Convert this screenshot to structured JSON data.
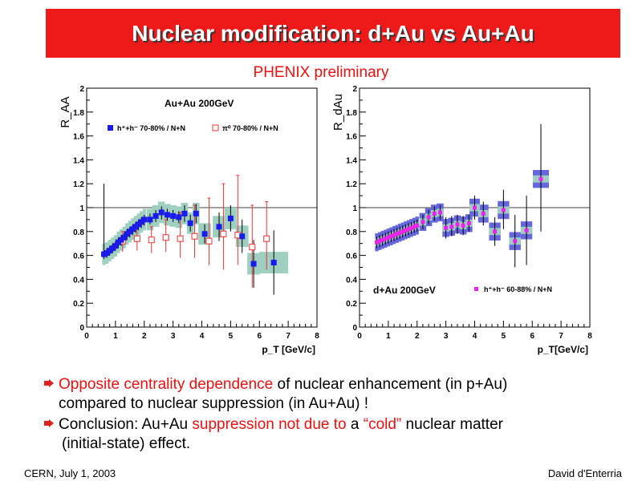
{
  "slide": {
    "title": "Nuclear modification: d+Au vs Au+Au",
    "subtitle": "PHENIX preliminary",
    "footer_left": "CERN, July 1, 2003",
    "footer_right": "David d'Enterria",
    "bullets": [
      {
        "highlight1": "Opposite centrality dependence",
        "text1": " of nuclear enhancement (in p+Au)",
        "line2": "compared to nuclear suppression (in Au+Au) !"
      },
      {
        "text1": "Conclusion: Au+Au ",
        "highlight1": "suppression not due to",
        "text2": " a ",
        "highlight2": "“cold”",
        "text3": " nuclear matter",
        "line2": "(initial-state) effect."
      }
    ]
  },
  "colors": {
    "title_bg": "#ee1a1a",
    "highlight": "#ee1111",
    "band_green": "#9ecfc0",
    "band_blue": "#6666dd",
    "magenta": "#ee22ee"
  },
  "chart_data": [
    {
      "type": "scatter",
      "title": "Au+Au 200GeV",
      "ylabel": "R_AA",
      "xlabel": "p_T [GeV/c]",
      "xlim": [
        0,
        8
      ],
      "ylim": [
        0,
        2
      ],
      "xticks": [
        "0",
        "1",
        "2",
        "3",
        "4",
        "5",
        "6",
        "7",
        "8"
      ],
      "yticks": [
        "0",
        "0.2",
        "0.4",
        "0.6",
        "0.8",
        "1",
        "1.2",
        "1.4",
        "1.6",
        "1.8",
        "2"
      ],
      "legend": [
        "h⁺+h⁻ 70-80% / N+N",
        "π⁰ 70-80% / N+N"
      ],
      "series": [
        {
          "name": "h⁺+h⁻ 70-80% / N+N",
          "x": [
            0.6,
            0.7,
            0.8,
            0.9,
            1.0,
            1.1,
            1.2,
            1.3,
            1.4,
            1.5,
            1.6,
            1.7,
            1.8,
            1.9,
            2.0,
            2.2,
            2.4,
            2.6,
            2.8,
            3.0,
            3.2,
            3.4,
            3.6,
            3.8,
            4.1,
            4.6,
            5.0,
            5.4,
            5.8,
            6.5
          ],
          "y": [
            0.61,
            0.62,
            0.64,
            0.66,
            0.68,
            0.71,
            0.73,
            0.75,
            0.78,
            0.8,
            0.82,
            0.84,
            0.86,
            0.88,
            0.9,
            0.9,
            0.93,
            0.96,
            0.94,
            0.93,
            0.92,
            0.95,
            0.87,
            0.95,
            0.78,
            0.84,
            0.91,
            0.76,
            0.53,
            0.54
          ]
        },
        {
          "name": "π⁰ 70-80% / N+N",
          "x": [
            1.25,
            1.75,
            2.25,
            2.75,
            3.25,
            3.75,
            4.25,
            4.75,
            5.25,
            5.75,
            6.25
          ],
          "y": [
            0.72,
            0.74,
            0.73,
            0.75,
            0.74,
            0.76,
            0.72,
            0.78,
            0.77,
            0.67,
            0.74
          ]
        }
      ]
    },
    {
      "type": "scatter",
      "title": "d+Au 200GeV",
      "ylabel": "R_dAu",
      "xlabel": "p_T[GeV/c]",
      "xlim": [
        0,
        8
      ],
      "ylim": [
        0,
        2
      ],
      "xticks": [
        "0",
        "1",
        "2",
        "3",
        "4",
        "5",
        "6",
        "7",
        "8"
      ],
      "yticks": [
        "0",
        "0.2",
        "0.4",
        "0.6",
        "0.8",
        "1",
        "1.2",
        "1.4",
        "1.6",
        "1.8",
        "2"
      ],
      "legend": [
        "h⁺+h⁻ 60-88% / N+N"
      ],
      "series": [
        {
          "name": "h⁺+h⁻ 60-88% / N+N",
          "x": [
            0.6,
            0.7,
            0.8,
            0.9,
            1.0,
            1.1,
            1.2,
            1.3,
            1.4,
            1.5,
            1.6,
            1.7,
            1.8,
            1.9,
            2.0,
            2.2,
            2.4,
            2.6,
            2.8,
            3.0,
            3.2,
            3.4,
            3.6,
            3.8,
            4.0,
            4.3,
            4.7,
            5.0,
            5.4,
            5.8,
            6.3
          ],
          "y": [
            0.71,
            0.72,
            0.73,
            0.74,
            0.75,
            0.76,
            0.77,
            0.78,
            0.79,
            0.8,
            0.81,
            0.82,
            0.83,
            0.84,
            0.85,
            0.88,
            0.92,
            0.95,
            0.96,
            0.83,
            0.84,
            0.86,
            0.85,
            0.87,
            1.0,
            0.95,
            0.8,
            0.98,
            0.72,
            0.81,
            1.24
          ]
        }
      ]
    }
  ]
}
